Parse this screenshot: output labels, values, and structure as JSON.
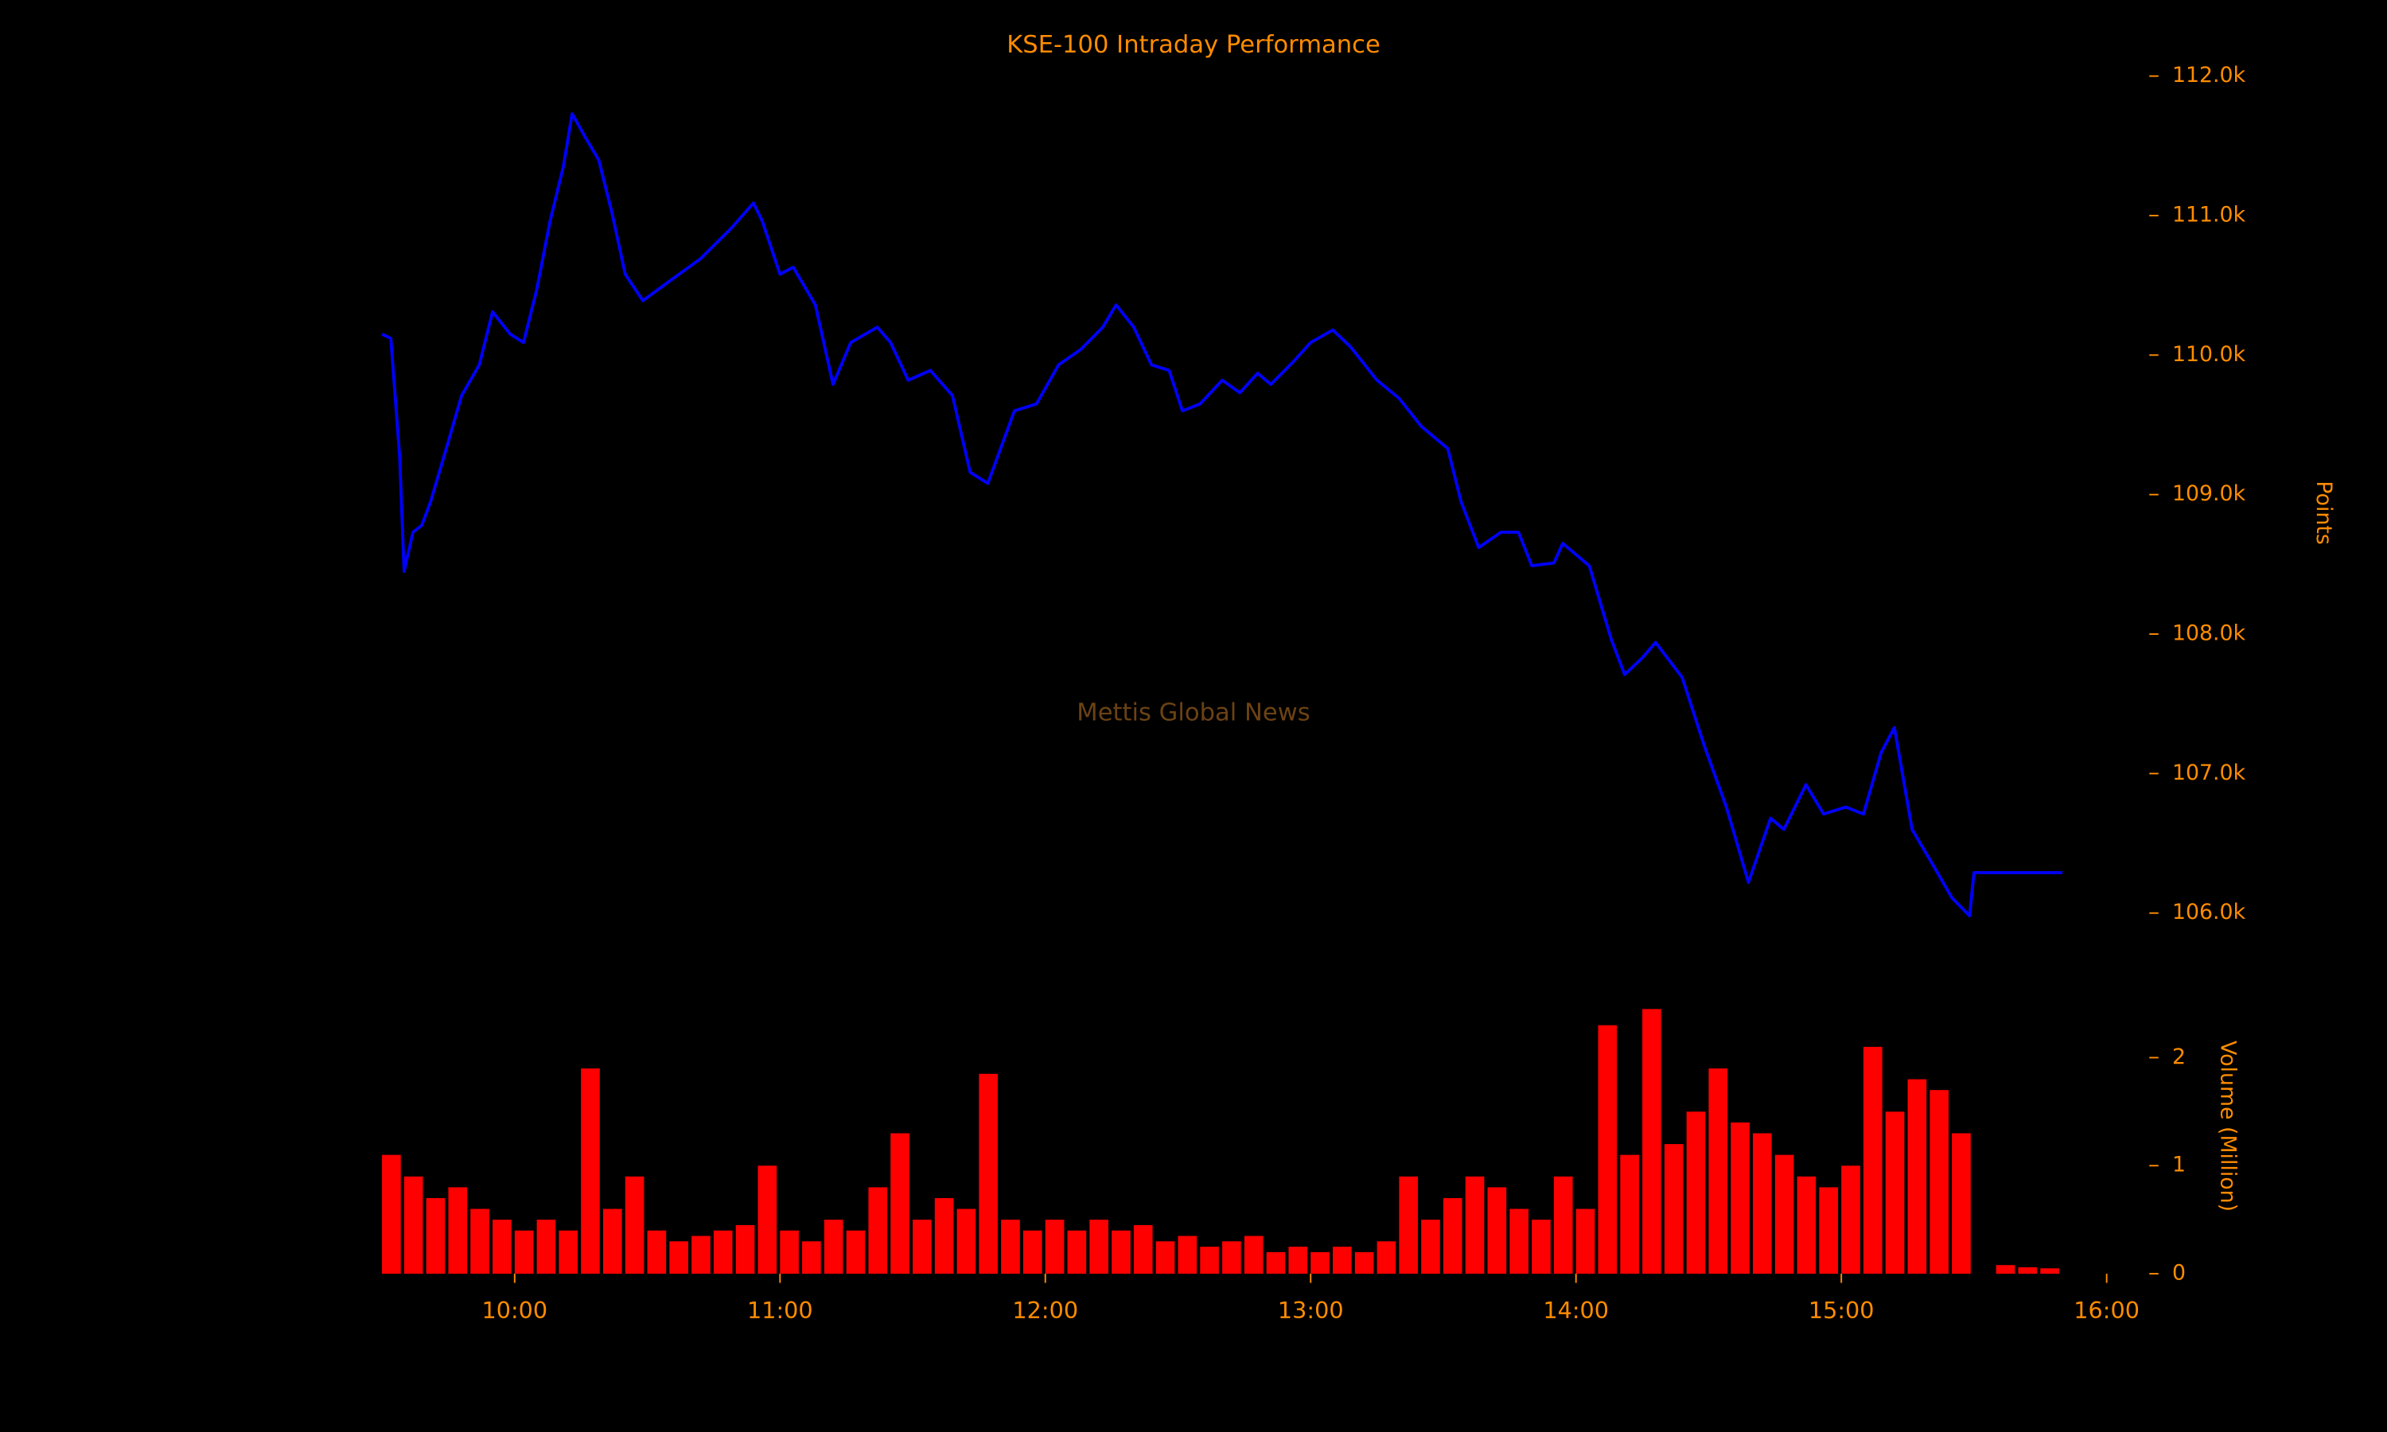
{
  "chart_data": [
    {
      "type": "line",
      "title": "KSE-100 Intraday Performance",
      "ylabel": "Points",
      "annotation": "Mettis Global News",
      "x": [
        "09:30",
        "09:32",
        "09:34",
        "09:35",
        "09:37",
        "09:39",
        "09:41",
        "09:45",
        "09:48",
        "09:52",
        "09:55",
        "09:59",
        "10:02",
        "10:05",
        "10:08",
        "10:11",
        "10:13",
        "10:16",
        "10:19",
        "10:22",
        "10:25",
        "10:29",
        "10:35",
        "10:42",
        "10:49",
        "10:54",
        "10:56",
        "11:00",
        "11:03",
        "11:08",
        "11:12",
        "11:16",
        "11:22",
        "11:25",
        "11:29",
        "11:34",
        "11:39",
        "11:43",
        "11:47",
        "11:53",
        "11:58",
        "12:03",
        "12:08",
        "12:13",
        "12:16",
        "12:20",
        "12:24",
        "12:28",
        "12:31",
        "12:35",
        "12:40",
        "12:44",
        "12:48",
        "12:51",
        "12:56",
        "13:00",
        "13:05",
        "13:09",
        "13:15",
        "13:20",
        "13:25",
        "13:31",
        "13:34",
        "13:38",
        "13:43",
        "13:47",
        "13:50",
        "13:55",
        "13:57",
        "14:03",
        "14:08",
        "14:11",
        "14:15",
        "14:18",
        "14:24",
        "14:29",
        "14:34",
        "14:39",
        "14:44",
        "14:47",
        "14:52",
        "14:56",
        "15:01",
        "15:05",
        "15:09",
        "15:12",
        "15:16",
        "15:21",
        "15:25",
        "15:29",
        "15:30",
        "15:50"
      ],
      "series": [
        {
          "name": "KSE-100",
          "color": "#0000ff",
          "values": [
            110150,
            110120,
            109270,
            108450,
            108730,
            108780,
            108950,
            109380,
            109710,
            109930,
            110310,
            110150,
            110090,
            110470,
            110960,
            111350,
            111730,
            111560,
            111400,
            111020,
            110580,
            110390,
            110530,
            110690,
            110910,
            111090,
            110960,
            110580,
            110630,
            110360,
            109790,
            110090,
            110200,
            110090,
            109820,
            109890,
            109710,
            109160,
            109080,
            109600,
            109650,
            109930,
            110040,
            110200,
            110360,
            110200,
            109930,
            109890,
            109600,
            109650,
            109820,
            109730,
            109870,
            109790,
            109950,
            110090,
            110180,
            110060,
            109820,
            109690,
            109490,
            109330,
            108950,
            108620,
            108730,
            108730,
            108490,
            108510,
            108650,
            108490,
            107960,
            107710,
            107830,
            107940,
            107690,
            107200,
            106760,
            106220,
            106680,
            106600,
            106920,
            106710,
            106760,
            106710,
            107150,
            107330,
            106600,
            106330,
            106110,
            105980,
            106290,
            106290
          ]
        }
      ],
      "xlim": [
        "09:28",
        "16:05"
      ],
      "ylim": [
        105700,
        112300
      ],
      "yticks": [
        {
          "value": 106000,
          "label": "106.0k"
        },
        {
          "value": 107000,
          "label": "107.0k"
        },
        {
          "value": 108000,
          "label": "108.0k"
        },
        {
          "value": 109000,
          "label": "109.0k"
        },
        {
          "value": 110000,
          "label": "110.0k"
        },
        {
          "value": 111000,
          "label": "111.0k"
        },
        {
          "value": 112000,
          "label": "112.0k"
        }
      ],
      "grid": false
    },
    {
      "type": "bar",
      "ylabel": "Volume (Million)",
      "x": [
        "09:30",
        "09:35",
        "09:40",
        "09:45",
        "09:50",
        "09:55",
        "10:00",
        "10:05",
        "10:10",
        "10:15",
        "10:20",
        "10:25",
        "10:30",
        "10:35",
        "10:40",
        "10:45",
        "10:50",
        "10:55",
        "11:00",
        "11:05",
        "11:10",
        "11:15",
        "11:20",
        "11:25",
        "11:30",
        "11:35",
        "11:40",
        "11:45",
        "11:50",
        "11:55",
        "12:00",
        "12:05",
        "12:10",
        "12:15",
        "12:20",
        "12:25",
        "12:30",
        "12:35",
        "12:40",
        "12:45",
        "12:50",
        "12:55",
        "13:00",
        "13:05",
        "13:10",
        "13:15",
        "13:20",
        "13:25",
        "13:30",
        "13:35",
        "13:40",
        "13:45",
        "13:50",
        "13:55",
        "14:00",
        "14:05",
        "14:10",
        "14:15",
        "14:20",
        "14:25",
        "14:30",
        "14:35",
        "14:40",
        "14:45",
        "14:50",
        "14:55",
        "15:00",
        "15:05",
        "15:10",
        "15:15",
        "15:20",
        "15:25",
        "15:35",
        "15:40",
        "15:45"
      ],
      "values": [
        1.1,
        0.9,
        0.7,
        0.8,
        0.6,
        0.5,
        0.4,
        0.5,
        0.4,
        1.9,
        0.6,
        0.9,
        0.4,
        0.3,
        0.35,
        0.4,
        0.45,
        1.0,
        0.4,
        0.3,
        0.5,
        0.4,
        0.8,
        1.3,
        0.5,
        0.7,
        0.6,
        1.85,
        0.5,
        0.4,
        0.5,
        0.4,
        0.5,
        0.4,
        0.45,
        0.3,
        0.35,
        0.25,
        0.3,
        0.35,
        0.2,
        0.25,
        0.2,
        0.25,
        0.2,
        0.3,
        0.9,
        0.5,
        0.7,
        0.9,
        0.8,
        0.6,
        0.5,
        0.9,
        0.6,
        2.3,
        1.1,
        2.45,
        1.2,
        1.5,
        1.9,
        1.4,
        1.3,
        1.1,
        0.9,
        0.8,
        1.0,
        2.1,
        1.5,
        1.8,
        1.7,
        1.3,
        0.08,
        0.06,
        0.05
      ],
      "color": "#ff0000",
      "xlim": [
        "09:28",
        "16:05"
      ],
      "ylim": [
        0,
        2.7
      ],
      "yticks": [
        0,
        1,
        2
      ],
      "xticks": [
        "10:00",
        "11:00",
        "12:00",
        "13:00",
        "14:00",
        "15:00",
        "16:00"
      ]
    }
  ]
}
